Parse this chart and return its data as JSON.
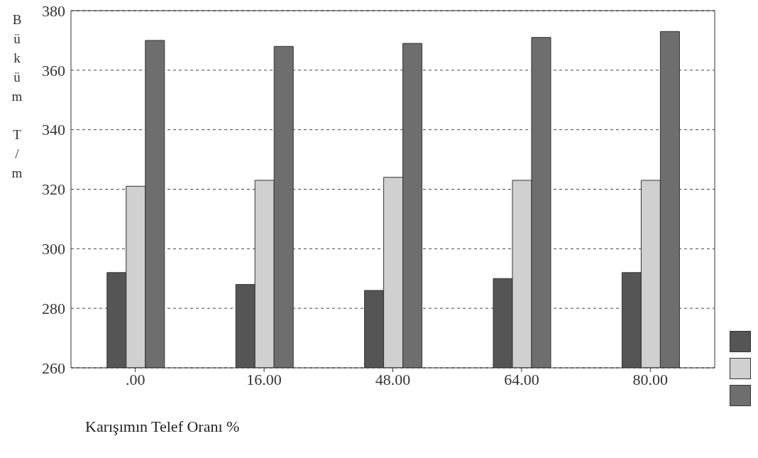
{
  "chart_data": {
    "type": "bar",
    "xlabel": "Karışımın Telef Oranı %",
    "ylabel": "Büküm T/m",
    "categories": [
      ".00",
      "16.00",
      "48.00",
      "64.00",
      "80.00"
    ],
    "series": [
      {
        "color": "#555555",
        "values": [
          292,
          288,
          286,
          290,
          292
        ]
      },
      {
        "color": "#d0d0d0",
        "values": [
          321,
          323,
          324,
          323,
          323
        ]
      },
      {
        "color": "#6e6e6e",
        "values": [
          370,
          368,
          369,
          371,
          373
        ]
      }
    ],
    "ylim": [
      260,
      380
    ],
    "yticks": [
      260,
      280,
      300,
      320,
      340,
      360,
      380
    ],
    "grid": "y"
  }
}
